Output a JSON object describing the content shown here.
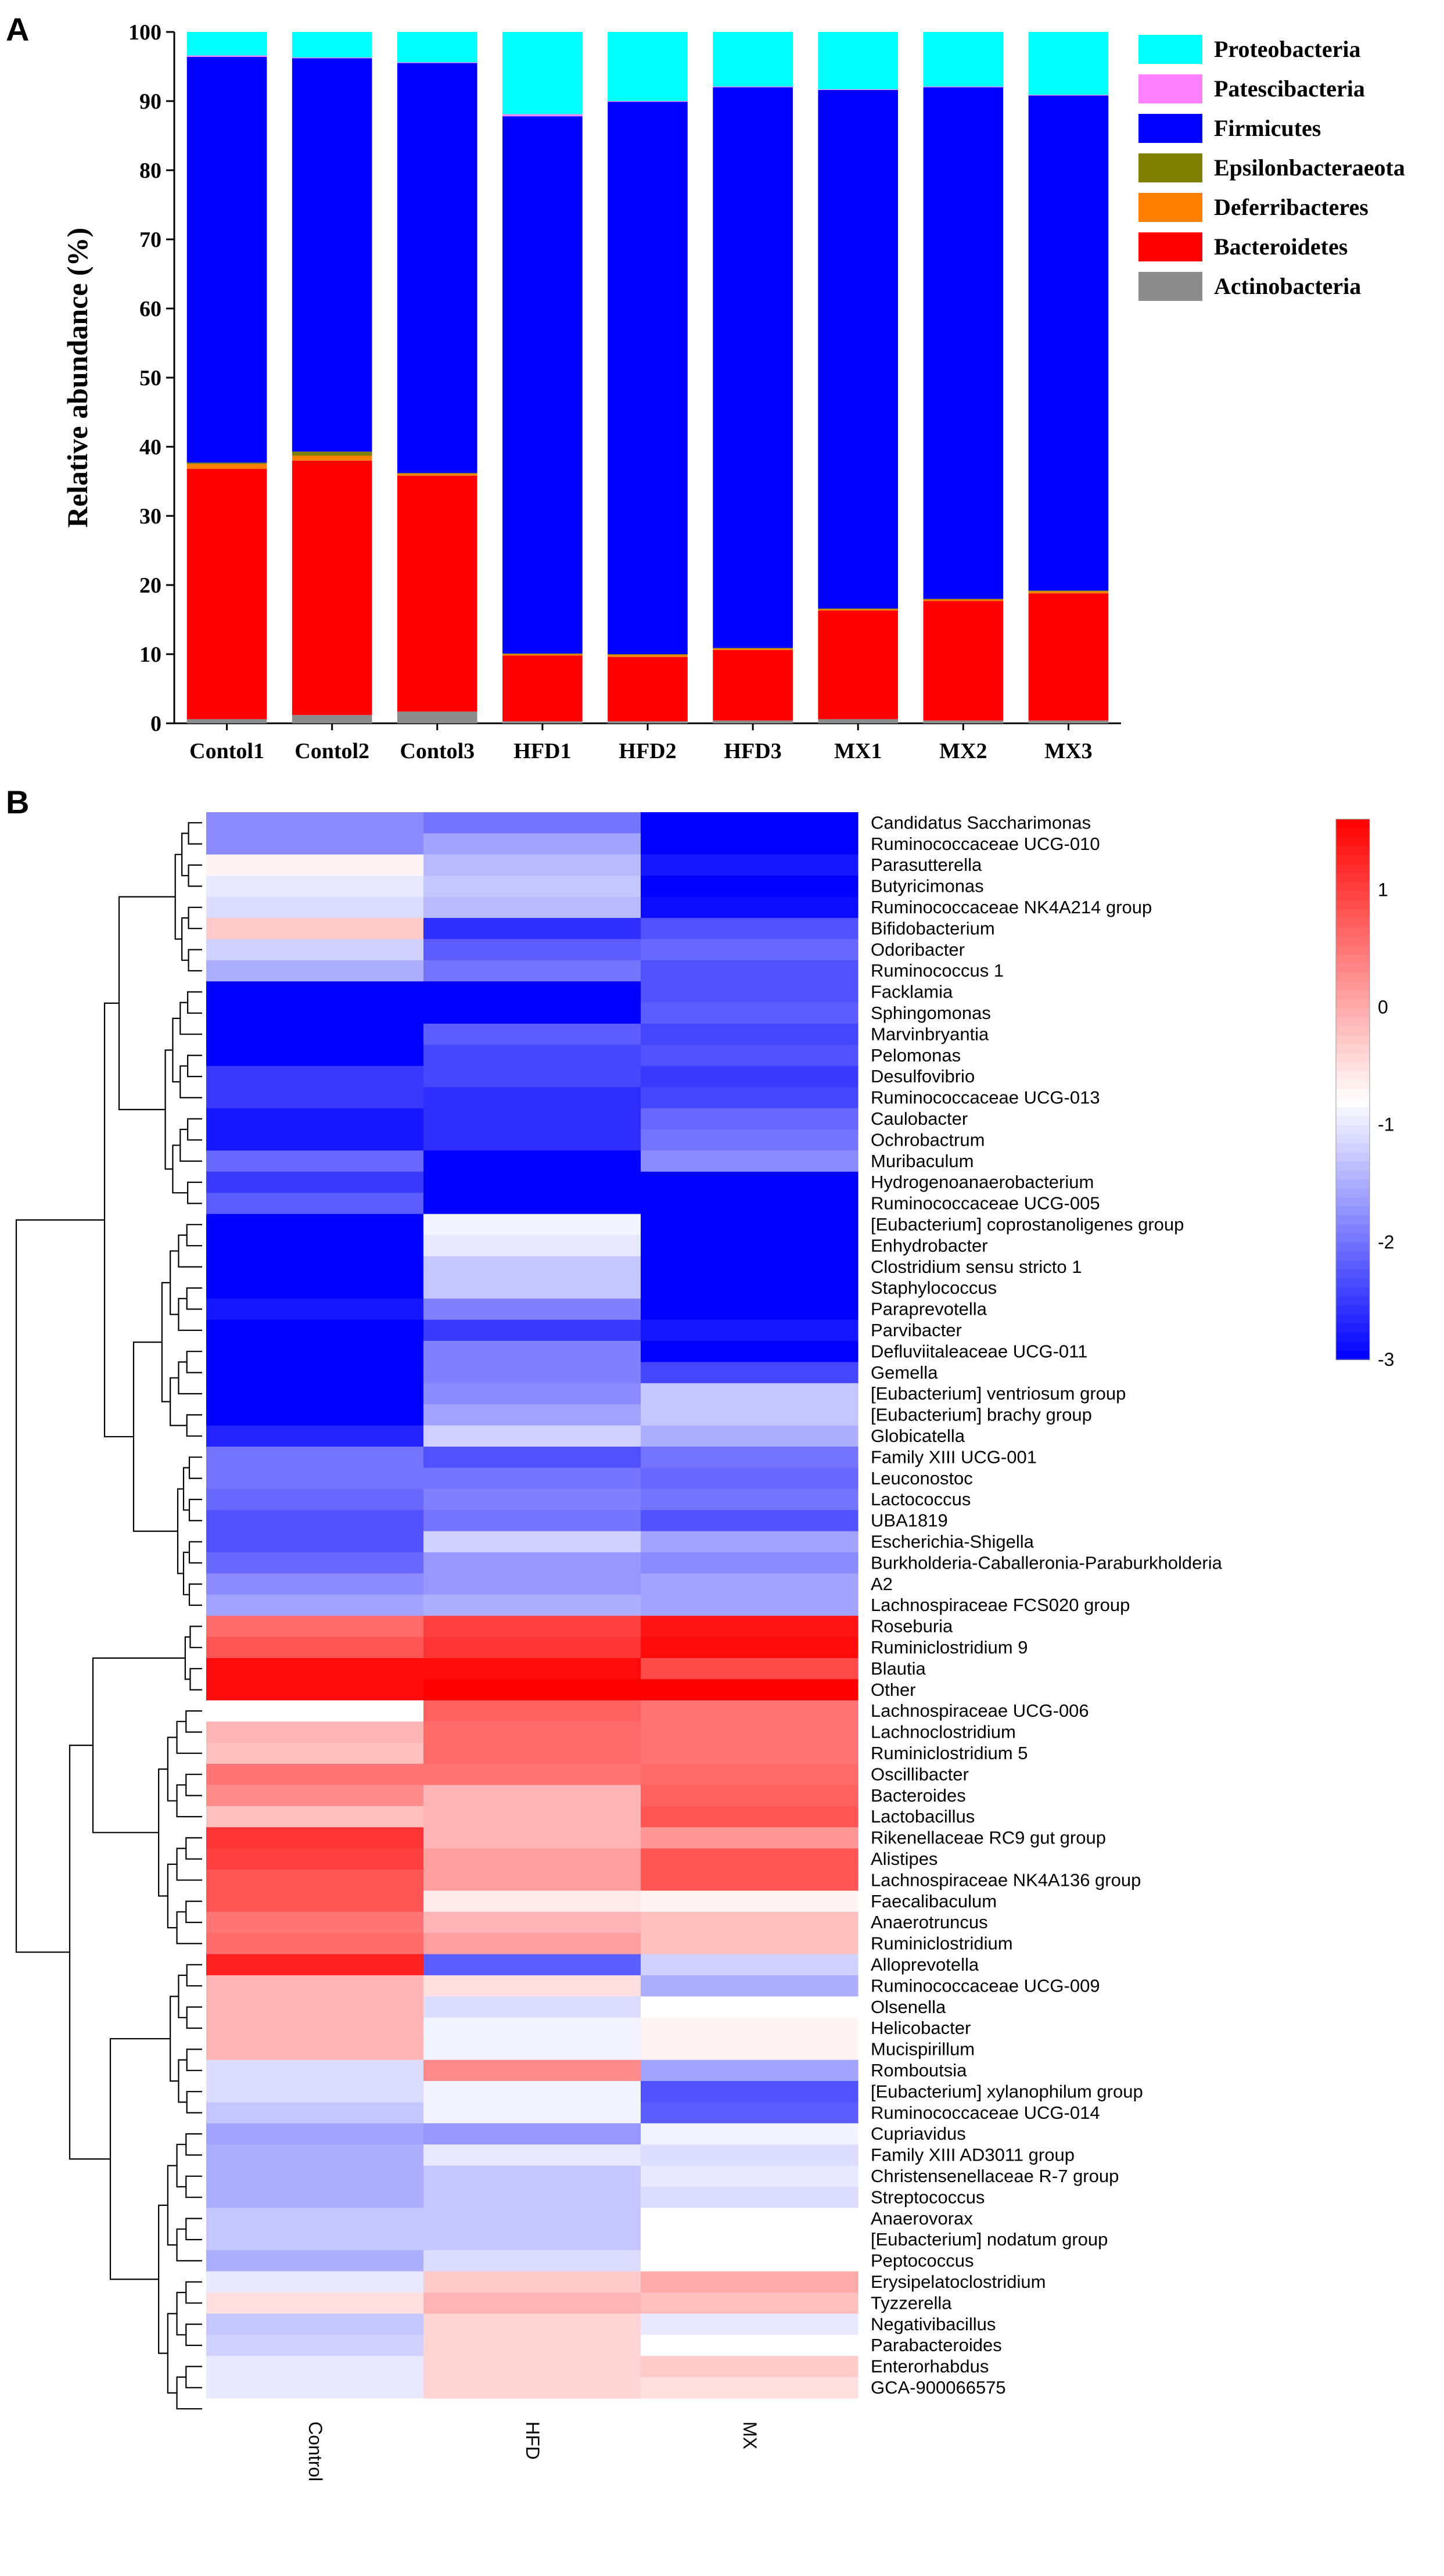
{
  "panel_a_label": "A",
  "panel_b_label": "B",
  "chart_data": [
    {
      "type": "bar",
      "stacked": true,
      "title": "",
      "xlabel": "",
      "ylabel": "Relative abundance (%)",
      "ylim": [
        0,
        100
      ],
      "yticks": [
        "0",
        "10",
        "20",
        "30",
        "40",
        "50",
        "60",
        "70",
        "80",
        "90",
        "100"
      ],
      "categories": [
        "Contol1",
        "Contol2",
        "Contol3",
        "HFD1",
        "HFD2",
        "HFD3",
        "MX1",
        "MX2",
        "MX3"
      ],
      "legend_position": "top-right",
      "series": [
        {
          "name": "Actinobacteria",
          "color": "#8c8c8c",
          "values": [
            0.6,
            1.2,
            1.7,
            0.3,
            0.3,
            0.4,
            0.6,
            0.4,
            0.4
          ]
        },
        {
          "name": "Bacteroidetes",
          "color": "#ff0000",
          "values": [
            36.2,
            36.8,
            34.1,
            9.5,
            9.3,
            10.2,
            15.7,
            17.3,
            18.4
          ]
        },
        {
          "name": "Deferribacteres",
          "color": "#ff8000",
          "values": [
            0.7,
            0.7,
            0.3,
            0.2,
            0.3,
            0.2,
            0.2,
            0.2,
            0.3
          ]
        },
        {
          "name": "Epsilonbacteraeota",
          "color": "#808000",
          "values": [
            0.2,
            0.6,
            0.1,
            0.1,
            0.1,
            0.1,
            0.1,
            0.1,
            0.1
          ]
        },
        {
          "name": "Firmicutes",
          "color": "#0000ff",
          "values": [
            58.7,
            56.9,
            59.3,
            77.7,
            79.9,
            81.1,
            75.0,
            74.0,
            71.6
          ]
        },
        {
          "name": "Patescibacteria",
          "color": "#ff80ff",
          "values": [
            0.2,
            0.1,
            0.1,
            0.3,
            0.1,
            0.1,
            0.1,
            0.1,
            0.1
          ]
        },
        {
          "name": "Proteobacteria",
          "color": "#00ffff",
          "values": [
            3.4,
            3.7,
            4.4,
            11.9,
            10.0,
            7.9,
            8.3,
            7.9,
            9.1
          ]
        }
      ],
      "legend_order": [
        "Proteobacteria",
        "Patescibacteria",
        "Firmicutes",
        "Epsilonbacteraeota",
        "Deferribacteres",
        "Bacteroidetes",
        "Actinobacteria"
      ]
    },
    {
      "type": "heatmap",
      "title": "",
      "columns": [
        "Control",
        "HFD",
        "MX"
      ],
      "colorbar": {
        "min": -3,
        "max": 1.6,
        "ticks": [
          "1",
          "0",
          "-1",
          "-2",
          "-3"
        ],
        "tick_values": [
          1,
          0,
          -1,
          -2,
          -3
        ]
      },
      "rows": [
        {
          "name": "Candidatus Saccharimonas",
          "values": [
            -1.8,
            -2.0,
            -3.0
          ]
        },
        {
          "name": "Ruminococcaceae UCG-010",
          "values": [
            -1.8,
            -1.6,
            -3.0
          ]
        },
        {
          "name": "Parasutterella",
          "values": [
            -0.7,
            -1.4,
            -2.8
          ]
        },
        {
          "name": "Butyricimonas",
          "values": [
            -1.0,
            -1.3,
            -3.0
          ]
        },
        {
          "name": "Ruminococcaceae NK4A214 group",
          "values": [
            -1.1,
            -1.4,
            -2.9
          ]
        },
        {
          "name": "Bifidobacterium",
          "values": [
            -0.3,
            -2.6,
            -2.3
          ]
        },
        {
          "name": "Odoribacter",
          "values": [
            -1.2,
            -2.2,
            -2.1
          ]
        },
        {
          "name": "Ruminococcus 1",
          "values": [
            -1.5,
            -2.0,
            -2.3
          ]
        },
        {
          "name": "Facklamia",
          "values": [
            -3.0,
            -3.0,
            -2.3
          ]
        },
        {
          "name": "Sphingomonas",
          "values": [
            -3.0,
            -3.0,
            -2.2
          ]
        },
        {
          "name": "Marvinbryantia",
          "values": [
            -3.0,
            -2.2,
            -2.4
          ]
        },
        {
          "name": "Pelomonas",
          "values": [
            -3.0,
            -2.4,
            -2.3
          ]
        },
        {
          "name": "Desulfovibrio",
          "values": [
            -2.5,
            -2.4,
            -2.5
          ]
        },
        {
          "name": "Ruminococcaceae UCG-013",
          "values": [
            -2.5,
            -2.6,
            -2.4
          ]
        },
        {
          "name": "Caulobacter",
          "values": [
            -2.8,
            -2.6,
            -2.1
          ]
        },
        {
          "name": "Ochrobactrum",
          "values": [
            -2.8,
            -2.6,
            -2.0
          ]
        },
        {
          "name": "Muribaculum",
          "values": [
            -2.1,
            -3.0,
            -1.8
          ]
        },
        {
          "name": "Hydrogenoanaerobacterium",
          "values": [
            -2.5,
            -3.0,
            -3.0
          ]
        },
        {
          "name": "Ruminococcaceae UCG-005",
          "values": [
            -2.2,
            -3.0,
            -3.0
          ]
        },
        {
          "name": "[Eubacterium] coprostanoligenes group",
          "values": [
            -3.0,
            -0.9,
            -3.0
          ]
        },
        {
          "name": "Enhydrobacter",
          "values": [
            -3.0,
            -1.0,
            -3.0
          ]
        },
        {
          "name": "Clostridium sensu stricto 1",
          "values": [
            -3.0,
            -1.3,
            -3.0
          ]
        },
        {
          "name": "Staphylococcus",
          "values": [
            -3.0,
            -1.3,
            -3.0
          ]
        },
        {
          "name": "Paraprevotella",
          "values": [
            -2.8,
            -1.9,
            -3.0
          ]
        },
        {
          "name": "Parvibacter",
          "values": [
            -3.0,
            -2.5,
            -2.8
          ]
        },
        {
          "name": "Defluviitaleaceae UCG-011",
          "values": [
            -3.0,
            -1.9,
            -3.0
          ]
        },
        {
          "name": "Gemella",
          "values": [
            -3.0,
            -1.9,
            -2.4
          ]
        },
        {
          "name": "[Eubacterium] ventriosum group",
          "values": [
            -3.0,
            -1.8,
            -1.3
          ]
        },
        {
          "name": "[Eubacterium] brachy group",
          "values": [
            -3.0,
            -1.6,
            -1.3
          ]
        },
        {
          "name": "Globicatella",
          "values": [
            -2.7,
            -1.2,
            -1.5
          ]
        },
        {
          "name": "Family XIII UCG-001",
          "values": [
            -2.0,
            -2.3,
            -2.0
          ]
        },
        {
          "name": "Leuconostoc",
          "values": [
            -2.0,
            -2.0,
            -2.1
          ]
        },
        {
          "name": "Lactococcus",
          "values": [
            -2.1,
            -1.9,
            -2.0
          ]
        },
        {
          "name": "UBA1819",
          "values": [
            -2.3,
            -2.0,
            -2.3
          ]
        },
        {
          "name": "Escherichia-Shigella",
          "values": [
            -2.3,
            -1.2,
            -1.6
          ]
        },
        {
          "name": "Burkholderia-Caballeronia-Paraburkholderia",
          "values": [
            -2.1,
            -1.7,
            -1.8
          ]
        },
        {
          "name": "A2",
          "values": [
            -1.8,
            -1.7,
            -1.6
          ]
        },
        {
          "name": "Lachnospiraceae FCS020 group",
          "values": [
            -1.6,
            -1.5,
            -1.6
          ]
        },
        {
          "name": "Roseburia",
          "values": [
            0.6,
            1.0,
            1.4
          ]
        },
        {
          "name": "Ruminiclostridium 9",
          "values": [
            0.8,
            1.1,
            1.5
          ]
        },
        {
          "name": "Blautia",
          "values": [
            1.5,
            1.5,
            0.9
          ]
        },
        {
          "name": "Other",
          "values": [
            1.5,
            1.6,
            1.6
          ]
        },
        {
          "name": "Lachnospiraceae UCG-006",
          "values": [
            -0.8,
            0.7,
            0.5
          ]
        },
        {
          "name": "Lachnoclostridium",
          "values": [
            -0.1,
            0.6,
            0.5
          ]
        },
        {
          "name": "Ruminiclostridium 5",
          "values": [
            -0.2,
            0.6,
            0.5
          ]
        },
        {
          "name": "Oscillibacter",
          "values": [
            0.5,
            0.5,
            0.6
          ]
        },
        {
          "name": "Bacteroides",
          "values": [
            0.3,
            -0.1,
            0.7
          ]
        },
        {
          "name": "Lactobacillus",
          "values": [
            -0.2,
            -0.1,
            0.8
          ]
        },
        {
          "name": "Rikenellaceae RC9 gut group",
          "values": [
            1.1,
            -0.1,
            0.2
          ]
        },
        {
          "name": "Alistipes",
          "values": [
            1.0,
            0.1,
            0.8
          ]
        },
        {
          "name": "Lachnospiraceae NK4A136 group",
          "values": [
            0.8,
            0.1,
            0.8
          ]
        },
        {
          "name": "Faecalibaculum",
          "values": [
            0.8,
            -0.6,
            -0.7
          ]
        },
        {
          "name": "Anaerotruncus",
          "values": [
            0.5,
            -0.1,
            -0.2
          ]
        },
        {
          "name": "Ruminiclostridium",
          "values": [
            0.6,
            0.1,
            -0.2
          ]
        },
        {
          "name": "Alloprevotella",
          "values": [
            1.3,
            -2.2,
            -1.2
          ]
        },
        {
          "name": "Ruminococcaceae UCG-009",
          "values": [
            -0.1,
            -0.5,
            -1.5
          ]
        },
        {
          "name": "Olsenella",
          "values": [
            -0.1,
            -1.1,
            -0.8
          ]
        },
        {
          "name": "Helicobacter",
          "values": [
            -0.1,
            -0.9,
            -0.7
          ]
        },
        {
          "name": "Mucispirillum",
          "values": [
            -0.1,
            -0.9,
            -0.7
          ]
        },
        {
          "name": "Romboutsia",
          "values": [
            -1.1,
            0.3,
            -1.6
          ]
        },
        {
          "name": "[Eubacterium] xylanophilum group",
          "values": [
            -1.1,
            -0.9,
            -2.3
          ]
        },
        {
          "name": "Ruminococcaceae UCG-014",
          "values": [
            -1.3,
            -0.9,
            -2.2
          ]
        },
        {
          "name": "Cupriavidus",
          "values": [
            -1.6,
            -1.7,
            -0.9
          ]
        },
        {
          "name": "Family XIII AD3011 group",
          "values": [
            -1.5,
            -1.0,
            -1.1
          ]
        },
        {
          "name": "Christensenellaceae R-7 group",
          "values": [
            -1.5,
            -1.3,
            -1.0
          ]
        },
        {
          "name": "Streptococcus",
          "values": [
            -1.5,
            -1.3,
            -1.1
          ]
        },
        {
          "name": "Anaerovorax",
          "values": [
            -1.3,
            -1.3,
            -0.8
          ]
        },
        {
          "name": "[Eubacterium] nodatum group",
          "values": [
            -1.3,
            -1.3,
            -0.8
          ]
        },
        {
          "name": "Peptococcus",
          "values": [
            -1.5,
            -1.1,
            -0.8
          ]
        },
        {
          "name": "Erysipelatoclostridium",
          "values": [
            -1.0,
            -0.3,
            0.0
          ]
        },
        {
          "name": "Tyzzerella",
          "values": [
            -0.5,
            -0.1,
            -0.2
          ]
        },
        {
          "name": "Negativibacillus",
          "values": [
            -1.3,
            -0.4,
            -1.0
          ]
        },
        {
          "name": "Parabacteroides",
          "values": [
            -1.2,
            -0.4,
            -0.8
          ]
        },
        {
          "name": "Enterorhabdus",
          "values": [
            -1.0,
            -0.4,
            -0.3
          ]
        },
        {
          "name": "GCA-900066575",
          "values": [
            -1.0,
            -0.4,
            -0.5
          ]
        }
      ]
    }
  ]
}
